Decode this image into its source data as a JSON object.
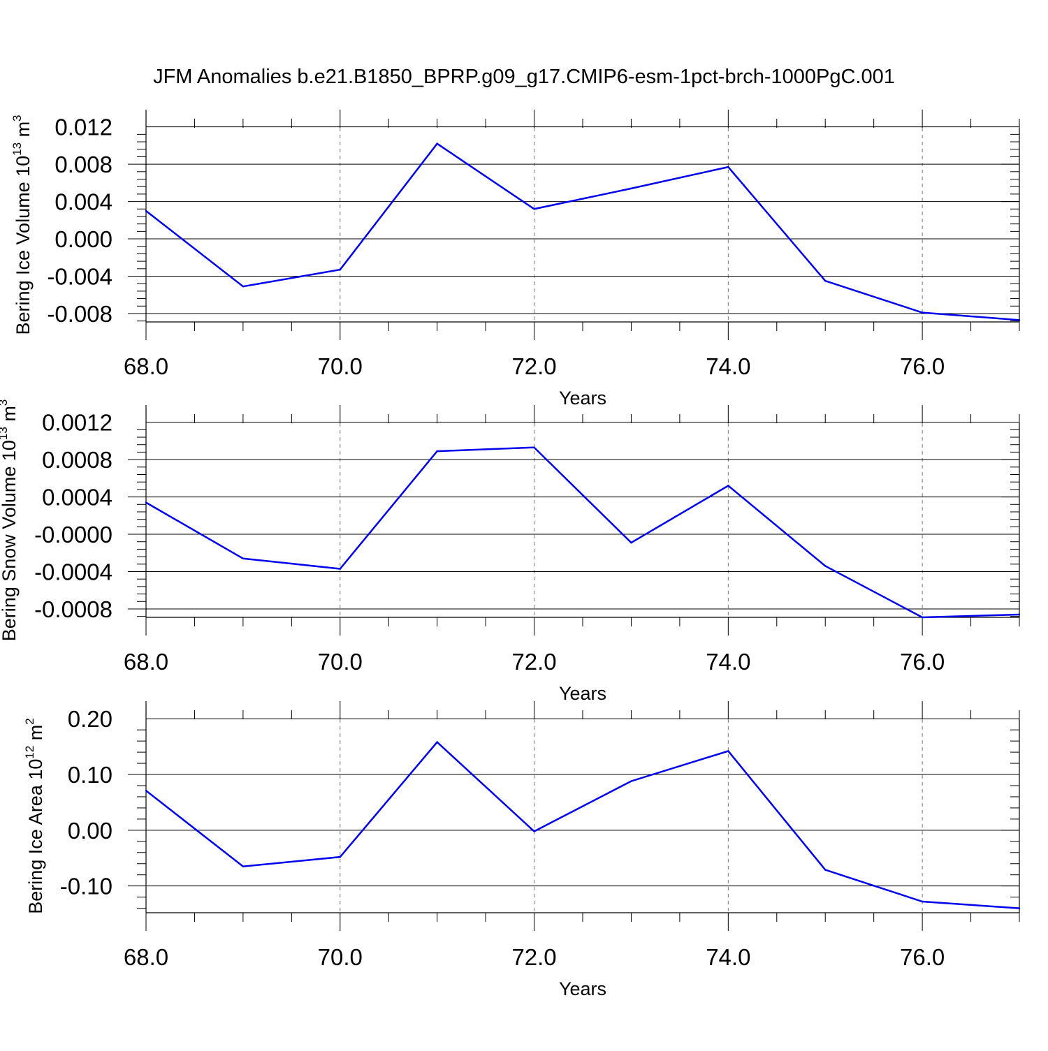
{
  "title": "JFM Anomalies b.e21.B1850_BPRP.g09_g17.CMIP6-esm-1pct-brch-1000PgC.001",
  "colors": {
    "line": "#0000ee",
    "axis": "#000000",
    "grid": "#777777"
  },
  "chart_data": [
    {
      "type": "line",
      "xlabel": "Years",
      "ylabel": {
        "text": "Bering Ice Volume 10",
        "exp": "13",
        "unit": " m",
        "unit_exp": "3"
      },
      "x": [
        68,
        69,
        70,
        71,
        72,
        73,
        74,
        75,
        76,
        77
      ],
      "series": [
        {
          "values": [
            0.003,
            -0.0051,
            -0.0033,
            0.0102,
            0.0032,
            0.0054,
            0.0077,
            -0.0045,
            -0.0079,
            -0.0087
          ]
        }
      ],
      "xlim": [
        68,
        77
      ],
      "ylim": [
        -0.0089,
        0.0119
      ],
      "xticks": [
        68,
        70,
        72,
        74,
        76
      ],
      "xtick_labels": [
        "68.0",
        "70.0",
        "72.0",
        "74.0",
        "76.0"
      ],
      "yticks": [
        0.012,
        0.008,
        0.004,
        0.0,
        -0.004,
        -0.008
      ],
      "ytick_labels": [
        "0.012",
        "0.008",
        "0.004",
        "0.000",
        "-0.004",
        "-0.008"
      ],
      "grid": "dashed vertical at major x ticks"
    },
    {
      "type": "line",
      "xlabel": "Years",
      "ylabel": {
        "text": "Bering Snow Volume 10",
        "exp": "13",
        "unit": " m",
        "unit_exp": "3"
      },
      "x": [
        68,
        69,
        70,
        71,
        72,
        73,
        74,
        75,
        76,
        77
      ],
      "series": [
        {
          "values": [
            0.00034,
            -0.00026,
            -0.00037,
            0.00089,
            0.00093,
            -9e-05,
            0.00052,
            -0.00034,
            -0.00089,
            -0.00086
          ]
        }
      ],
      "xlim": [
        68,
        77
      ],
      "ylim": [
        -0.00089,
        0.00119
      ],
      "xticks": [
        68,
        70,
        72,
        74,
        76
      ],
      "xtick_labels": [
        "68.0",
        "70.0",
        "72.0",
        "74.0",
        "76.0"
      ],
      "yticks": [
        0.0012,
        0.0008,
        0.0004,
        0.0,
        -0.0004,
        -0.0008
      ],
      "ytick_labels": [
        "0.0012",
        "0.0008",
        "0.0004",
        "-0.0000",
        "-0.0004",
        "-0.0008"
      ],
      "grid": "dashed vertical at major x ticks"
    },
    {
      "type": "line",
      "xlabel": "Years",
      "ylabel": {
        "text": "Bering Ice Area 10",
        "exp": "12",
        "unit": " m",
        "unit_exp": "2"
      },
      "x": [
        68,
        69,
        70,
        71,
        72,
        73,
        74,
        75,
        76,
        77
      ],
      "series": [
        {
          "values": [
            0.071,
            -0.065,
            -0.048,
            0.158,
            -0.002,
            0.088,
            0.142,
            -0.071,
            -0.128,
            -0.14
          ]
        }
      ],
      "xlim": [
        68,
        77
      ],
      "ylim": [
        -0.148,
        0.199
      ],
      "xticks": [
        68,
        70,
        72,
        74,
        76
      ],
      "xtick_labels": [
        "68.0",
        "70.0",
        "72.0",
        "74.0",
        "76.0"
      ],
      "yticks": [
        0.2,
        0.1,
        0.0,
        -0.1
      ],
      "ytick_labels": [
        "0.20",
        "0.10",
        "0.00",
        "-0.10"
      ],
      "grid": "dashed vertical at major x ticks"
    }
  ]
}
